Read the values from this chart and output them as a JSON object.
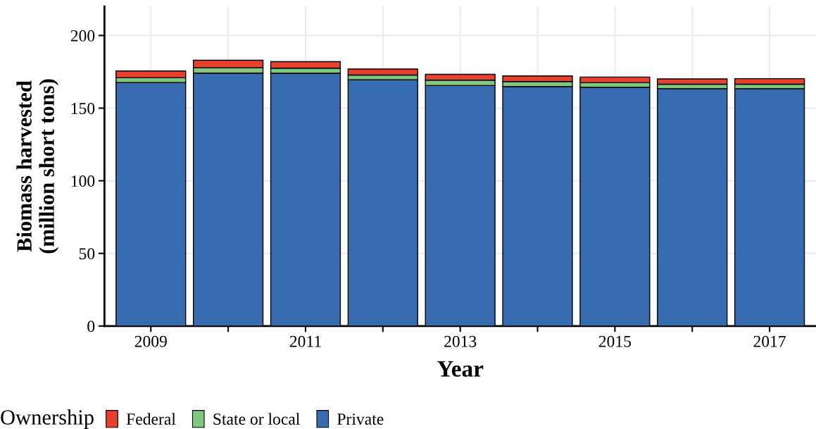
{
  "chart_data": {
    "type": "bar",
    "stacked": true,
    "xlabel": "Year",
    "ylabel": "Biomass harvested\n(million short tons)",
    "legend_title": "Ownership",
    "legend": "bottom",
    "grid": true,
    "x": [
      2009,
      2010,
      2011,
      2012,
      2013,
      2014,
      2015,
      2016,
      2017
    ],
    "xlim": [
      2008.4,
      2017.6
    ],
    "xticks": [
      2009,
      {
        "value": 2010,
        "label": null
      },
      2011,
      {
        "value": 2012,
        "label": null
      },
      2013,
      {
        "value": 2014,
        "label": null
      },
      2015,
      {
        "value": 2016,
        "label": null
      },
      2017
    ],
    "ylim": [
      0,
      220
    ],
    "yticks": [
      0,
      50,
      100,
      150,
      200
    ],
    "series": [
      {
        "name": "Private",
        "color": "#386cb0",
        "values": [
          167.6,
          174.1,
          174.0,
          169.6,
          165.6,
          164.8,
          164.3,
          163.4,
          163.4
        ]
      },
      {
        "name": "State or local",
        "color": "#7fc97f",
        "values": [
          3.3,
          3.7,
          3.5,
          3.2,
          3.7,
          3.5,
          3.2,
          3.1,
          3.1
        ]
      },
      {
        "name": "Federal",
        "color": "#e8402f",
        "values": [
          4.7,
          5.2,
          4.5,
          4.1,
          4.0,
          3.9,
          3.9,
          3.6,
          3.8
        ]
      }
    ]
  }
}
